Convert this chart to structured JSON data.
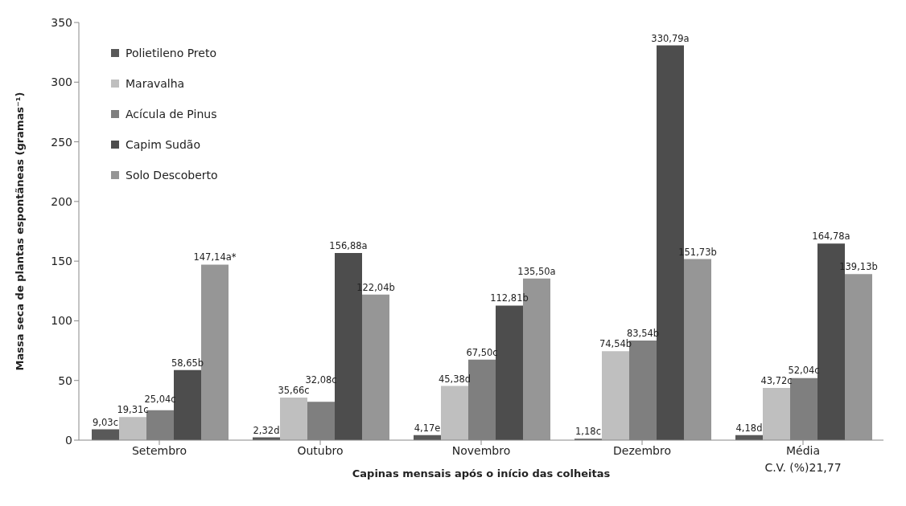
{
  "chart_data": {
    "type": "bar",
    "xlabel": "Capinas mensais após o início das colheitas",
    "ylabel": "Massa seca de plantas espontãneas (gramas⁻¹)",
    "categories": [
      "Setembro",
      "Outubro",
      "Novembro",
      "Dezembro",
      "Média"
    ],
    "series": [
      {
        "name": "Polietileno Preto",
        "color": "#595959",
        "values": [
          9.03,
          2.32,
          4.17,
          1.18,
          4.18
        ],
        "value_labels": [
          "9,03c",
          "2,32d",
          "4,17e",
          "1,18c",
          "4,18d"
        ]
      },
      {
        "name": "Maravalha",
        "color": "#bfbfbf",
        "values": [
          19.31,
          35.66,
          45.38,
          74.54,
          43.72
        ],
        "value_labels": [
          "19,31c",
          "35,66c",
          "45,38d",
          "74,54b",
          "43,72c"
        ]
      },
      {
        "name": "Acícula de Pinus",
        "color": "#7f7f7f",
        "values": [
          25.04,
          32.08,
          67.5,
          83.54,
          52.04
        ],
        "value_labels": [
          "25,04c",
          "32,08c",
          "67,50c",
          "83,54b",
          "52,04c"
        ]
      },
      {
        "name": "Capim Sudão",
        "color": "#4d4d4d",
        "values": [
          58.65,
          156.88,
          112.81,
          330.79,
          164.78
        ],
        "value_labels": [
          "58,65b",
          "156,88a",
          "112,81b",
          "330,79a",
          "164,78a"
        ]
      },
      {
        "name": "Solo Descoberto",
        "color": "#969696",
        "values": [
          147.14,
          122.04,
          135.5,
          151.73,
          139.13
        ],
        "value_labels": [
          "147,14a*",
          "122,04b",
          "135,50a",
          "151,73b",
          "139,13b"
        ]
      }
    ],
    "ylim": [
      0,
      350
    ],
    "yticks": [
      0,
      50,
      100,
      150,
      200,
      250,
      300,
      350
    ],
    "grid": false,
    "legend": "top left",
    "annotations": [
      "C.V. (%)21,77"
    ]
  }
}
